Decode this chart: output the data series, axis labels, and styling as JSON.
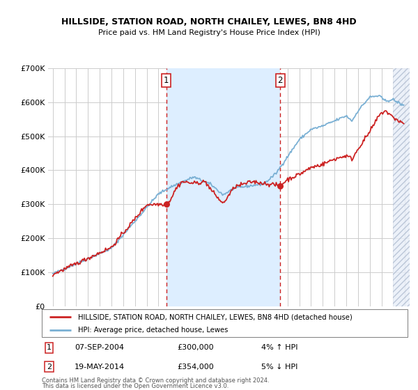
{
  "title1": "HILLSIDE, STATION ROAD, NORTH CHAILEY, LEWES, BN8 4HD",
  "title2": "Price paid vs. HM Land Registry's House Price Index (HPI)",
  "legend_line1": "HILLSIDE, STATION ROAD, NORTH CHAILEY, LEWES, BN8 4HD (detached house)",
  "legend_line2": "HPI: Average price, detached house, Lewes",
  "ann1_num": "1",
  "ann1_date": "07-SEP-2004",
  "ann1_price": "£300,000",
  "ann1_pct": "4% ↑ HPI",
  "ann1_year": 2004.67,
  "ann2_num": "2",
  "ann2_date": "19-MAY-2014",
  "ann2_price": "£354,000",
  "ann2_pct": "5% ↓ HPI",
  "ann2_year": 2014.38,
  "footer1": "Contains HM Land Registry data © Crown copyright and database right 2024.",
  "footer2": "This data is licensed under the Open Government Licence v3.0.",
  "hpi_color": "#7ab0d4",
  "price_color": "#cc2222",
  "bg_between": "#ddeeff",
  "ylim": [
    0,
    700000
  ],
  "yticks": [
    0,
    100000,
    200000,
    300000,
    400000,
    500000,
    600000,
    700000
  ],
  "xmin": 1994.6,
  "xmax": 2025.4,
  "hatch_start": 2024.0
}
